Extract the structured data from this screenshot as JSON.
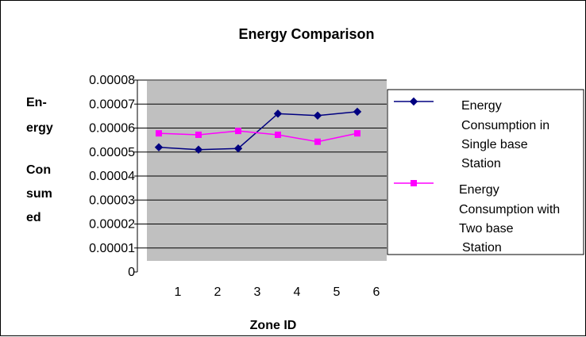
{
  "chart_data": {
    "type": "line",
    "title": "Energy Comparison",
    "xlabel": "Zone ID",
    "ylabel_lines": [
      "En-",
      "ergy",
      "",
      "Con",
      "sum",
      "ed"
    ],
    "x_ticks": [
      "1",
      "2",
      "3",
      "4",
      "5",
      "6"
    ],
    "y_ticks": [
      "0",
      "0.00001",
      "0.00002",
      "0.00003",
      "0.00004",
      "0.00005",
      "0.00006",
      "0.00007",
      "0.00008"
    ],
    "ylim": [
      0,
      8e-05
    ],
    "xlim": [
      0,
      6
    ],
    "grid": true,
    "legend_position": "right",
    "plot_background": "#c0c0c0",
    "series": [
      {
        "name_lines": [
          "Energy",
          "Consumption in",
          "Single base",
          "Station"
        ],
        "color": "#000080",
        "marker": "diamond",
        "x": [
          0.5,
          1.5,
          2.5,
          3.5,
          4.5,
          5.5
        ],
        "values": [
          5.2e-05,
          5.1e-05,
          5.15e-05,
          6.6e-05,
          6.52e-05,
          6.68e-05
        ]
      },
      {
        "name_lines": [
          "Energy",
          "Consumption with",
          "Two base",
          "Station"
        ],
        "color": "#ff00ff",
        "marker": "square",
        "x": [
          0.5,
          1.5,
          2.5,
          3.5,
          4.5,
          5.5
        ],
        "values": [
          5.78e-05,
          5.72e-05,
          5.88e-05,
          5.72e-05,
          5.43e-05,
          5.78e-05
        ]
      }
    ]
  }
}
